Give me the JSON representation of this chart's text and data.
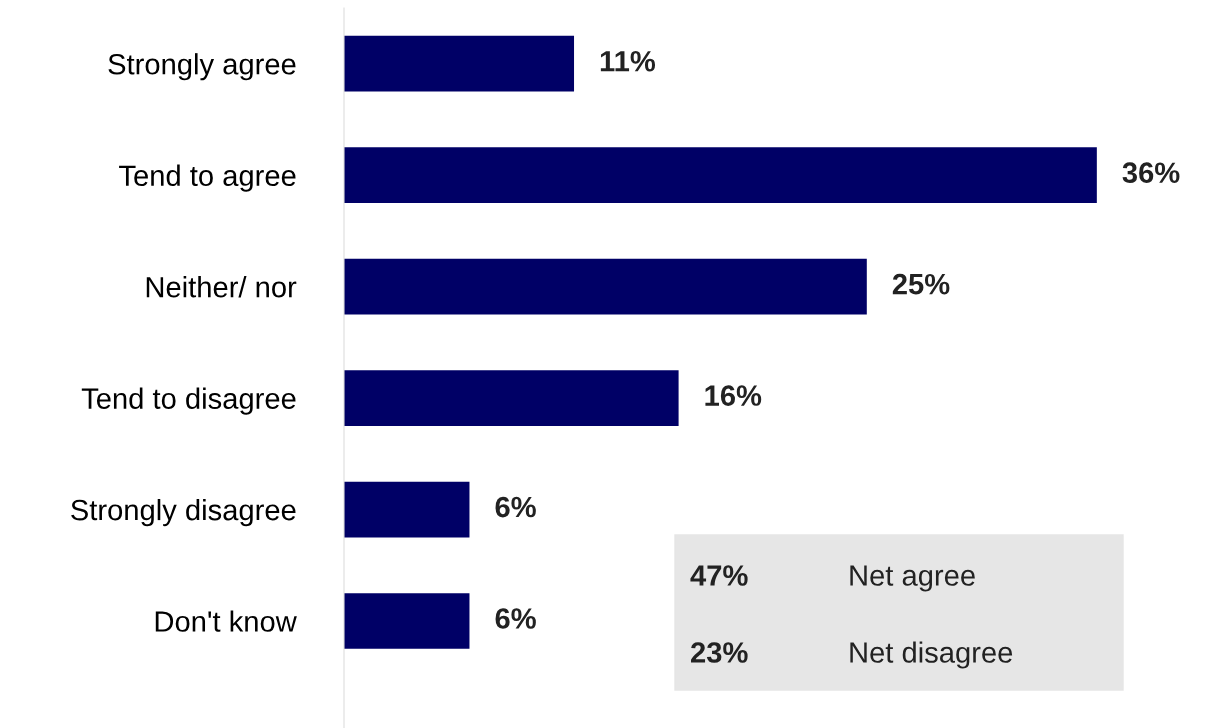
{
  "chart_data": {
    "type": "bar",
    "orientation": "horizontal",
    "categories": [
      "Strongly agree",
      "Tend to agree",
      "Neither/ nor",
      "Tend to disagree",
      "Strongly disagree",
      "Don't know"
    ],
    "values": [
      11,
      36,
      25,
      16,
      6,
      6
    ],
    "color": "#000066",
    "value_labels": [
      "11%",
      "36%",
      "25%",
      "16%",
      "6%",
      "6%"
    ],
    "annotations": [
      "47%",
      "Net agree",
      "23%",
      "Net disagree"
    ],
    "grid": false,
    "legend": false
  }
}
